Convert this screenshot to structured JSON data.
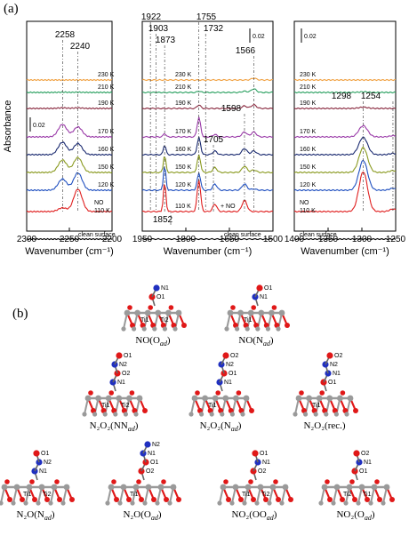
{
  "panel_a_label": "(a)",
  "panel_b_label": "(b)",
  "chart_data": [
    {
      "type": "line",
      "xlabel": "Wavenumber (cm⁻¹)",
      "ylabel": "Absorbance",
      "xlim": [
        2300,
        2200
      ],
      "xticks": [
        "2300",
        "2250",
        "2200"
      ],
      "series": [
        {
          "name": "230 K",
          "color": "#f0a040"
        },
        {
          "name": "210 K",
          "color": "#2aa060"
        },
        {
          "name": "190 K",
          "color": "#8a2a40"
        },
        {
          "name": "170 K",
          "color": "#9a3aa8"
        },
        {
          "name": "160 K",
          "color": "#1a2a70"
        },
        {
          "name": "150 K",
          "color": "#8a9a20"
        },
        {
          "name": "120 K",
          "color": "#2050c0"
        },
        {
          "name": "NO 110 K",
          "color": "#e02020"
        },
        {
          "name": "clean surface",
          "color": "#000000"
        }
      ],
      "peaks": [
        "2258",
        "2240"
      ],
      "scale_bar": "0.02"
    },
    {
      "type": "line",
      "xlabel": "Wavenumber (cm⁻¹)",
      "xlim": [
        1950,
        1500
      ],
      "xticks": [
        "1950",
        "1800",
        "1650",
        "1500"
      ],
      "series": [
        {
          "name": "230 K",
          "color": "#f0a040"
        },
        {
          "name": "210 K",
          "color": "#2aa060"
        },
        {
          "name": "190 K",
          "color": "#8a2a40"
        },
        {
          "name": "170 K",
          "color": "#9a3aa8"
        },
        {
          "name": "160 K",
          "color": "#1a2a70"
        },
        {
          "name": "150 K",
          "color": "#8a9a20"
        },
        {
          "name": "120 K",
          "color": "#2050c0"
        },
        {
          "name": "110 K",
          "color": "#e02020"
        },
        {
          "name": "clean surface",
          "color": "#000000"
        }
      ],
      "peaks": [
        "1922",
        "1903",
        "1873",
        "1755",
        "1732",
        "1566",
        "1598",
        "1705",
        "1852"
      ],
      "annotation": "+ NO",
      "scale_bar": "0.02"
    },
    {
      "type": "line",
      "xlabel": "Wavenumber (cm⁻¹)",
      "xlim": [
        1400,
        1250
      ],
      "xticks": [
        "1400",
        "1350",
        "1300",
        "1250"
      ],
      "series": [
        {
          "name": "230 K",
          "color": "#f0a040"
        },
        {
          "name": "210 K",
          "color": "#2aa060"
        },
        {
          "name": "190 K",
          "color": "#8a2a40"
        },
        {
          "name": "170 K",
          "color": "#9a3aa8"
        },
        {
          "name": "160 K",
          "color": "#1a2a70"
        },
        {
          "name": "150 K",
          "color": "#8a9a20"
        },
        {
          "name": "120 K",
          "color": "#2050c0"
        },
        {
          "name": "NO 110 K",
          "color": "#e02020"
        },
        {
          "name": "clean surface",
          "color": "#000000"
        }
      ],
      "peaks": [
        "1298",
        "1254"
      ],
      "scale_bar": "0.02"
    }
  ],
  "structures": [
    {
      "caption": "NO(O",
      "sub": "ad",
      "tail": ")",
      "atoms": [
        "N1",
        "O1",
        "Ti1",
        "Ti2"
      ]
    },
    {
      "caption": "NO(N",
      "sub": "ad",
      "tail": ")",
      "atoms": [
        "O1",
        "N1",
        "Ti1"
      ]
    },
    {
      "caption": "N₂O₂(NN",
      "sub": "ad",
      "tail": ")",
      "atoms": [
        "O1",
        "N2",
        "O2",
        "N1",
        "Ti1",
        "Ti2"
      ]
    },
    {
      "caption": "N₂O₂(N",
      "sub": "ad",
      "tail": ")",
      "atoms": [
        "O2",
        "N2",
        "O1",
        "N1",
        "Ti1"
      ]
    },
    {
      "caption": "N₂O₂(rec.)",
      "sub": "",
      "tail": "",
      "atoms": [
        "O2",
        "N2",
        "N1",
        "O1",
        "Ti1"
      ]
    },
    {
      "caption": "N₂O(N",
      "sub": "ad",
      "tail": ")",
      "atoms": [
        "O1",
        "N2",
        "N1",
        "Ti1",
        "Ti2"
      ]
    },
    {
      "caption": "N₂O(O",
      "sub": "ad",
      "tail": ")",
      "atoms": [
        "N2",
        "N1",
        "O1",
        "O2",
        "Ti1"
      ]
    },
    {
      "caption": "NO₂(OO",
      "sub": "ad",
      "tail": ")",
      "atoms": [
        "O1",
        "N1",
        "O2",
        "Ti1",
        "Ti2"
      ]
    },
    {
      "caption": "NO₂(O",
      "sub": "ad",
      "tail": ")",
      "atoms": [
        "O2",
        "N1",
        "O1",
        "Ti2",
        "Ti1"
      ]
    }
  ]
}
